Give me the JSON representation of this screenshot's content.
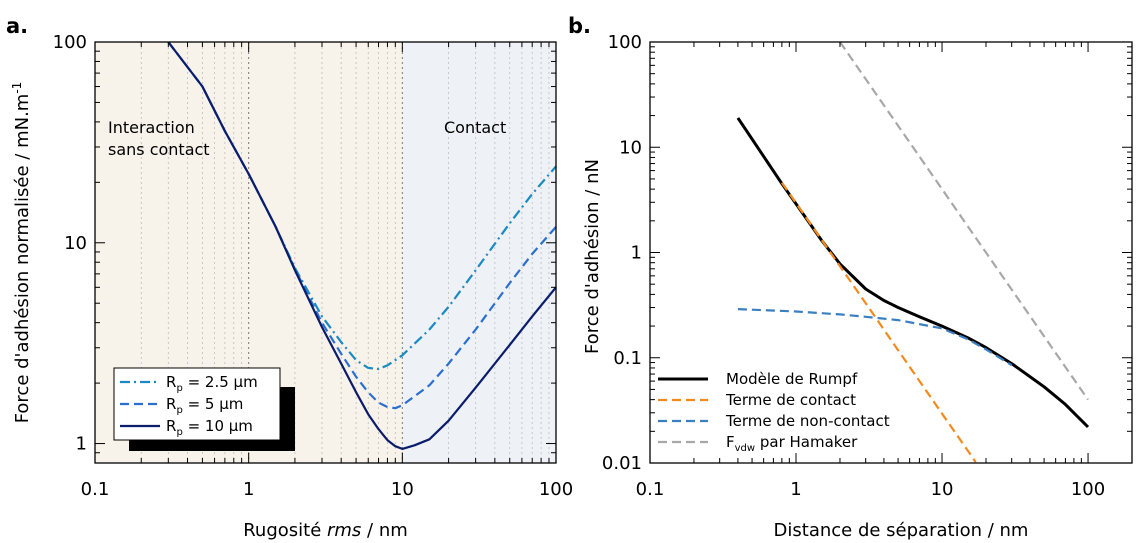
{
  "chart_data": [
    {
      "panel_label": "a.",
      "type": "line",
      "xlabel_main": "Rugosité ",
      "xlabel_italic": "rms",
      "xlabel_tail": " / nm",
      "ylabel": "Force d'adhésion normalisée / mN.m",
      "ylabel_sup": "-1",
      "xscale": "log",
      "yscale": "log",
      "xlim": [
        0.1,
        100
      ],
      "ylim": [
        0.8,
        100
      ],
      "xtick_labels": [
        {
          "value": 0.1,
          "label": "0.1"
        },
        {
          "value": 1,
          "label": "1"
        },
        {
          "value": 10,
          "label": "10"
        },
        {
          "value": 100,
          "label": "100"
        }
      ],
      "ytick_labels": [
        {
          "value": 1,
          "label": "1"
        },
        {
          "value": 10,
          "label": "10"
        },
        {
          "value": 100,
          "label": "100"
        }
      ],
      "grid": "vertical minor dotted",
      "regions": [
        {
          "label_lines": [
            "Interaction",
            "sans contact"
          ],
          "x_range": [
            0.1,
            10
          ],
          "color": "#f7f2ea"
        },
        {
          "label_lines": [
            "Contact"
          ],
          "x_range": [
            10,
            100
          ],
          "color": "#eef1f6"
        }
      ],
      "legend_position": "bottom-left",
      "series": [
        {
          "name": "R",
          "name_sub": "p",
          "name_tail": " = 2.5 µm",
          "color": "#1a8ac2",
          "dash": "dashdot",
          "x": [
            0.3,
            0.5,
            0.7,
            1.0,
            1.5,
            2.0,
            3.0,
            4.0,
            5.0,
            6.0,
            7.0,
            8.0,
            10.0,
            15.0,
            20.0,
            30.0,
            50.0,
            70.0,
            100.0
          ],
          "values": [
            100,
            60,
            36,
            22,
            12,
            7.5,
            4.3,
            3.2,
            2.6,
            2.38,
            2.35,
            2.45,
            2.75,
            3.7,
            4.8,
            7.3,
            12.5,
            17.5,
            24
          ]
        },
        {
          "name": "R",
          "name_sub": "p",
          "name_tail": " = 5 µm",
          "color": "#2a6fd0",
          "dash": "dashed",
          "x": [
            0.3,
            0.5,
            0.7,
            1.0,
            1.5,
            2.0,
            3.0,
            4.0,
            5.0,
            6.0,
            7.0,
            8.0,
            9.0,
            10.0,
            15.0,
            20.0,
            30.0,
            50.0,
            70.0,
            100.0
          ],
          "values": [
            100,
            60,
            36,
            22,
            12,
            7.4,
            4.0,
            2.8,
            2.15,
            1.8,
            1.6,
            1.52,
            1.5,
            1.55,
            1.95,
            2.5,
            3.7,
            6.3,
            8.8,
            12
          ]
        },
        {
          "name": "R",
          "name_sub": "p",
          "name_tail": " = 10 µm",
          "color": "#0b1c6b",
          "dash": "solid",
          "x": [
            0.3,
            0.5,
            0.7,
            1.0,
            1.5,
            2.0,
            3.0,
            4.0,
            5.0,
            6.0,
            7.0,
            8.0,
            9.0,
            10.0,
            12.0,
            15.0,
            20.0,
            30.0,
            50.0,
            70.0,
            100.0
          ],
          "values": [
            100,
            60,
            36,
            22,
            12,
            7.3,
            3.8,
            2.5,
            1.8,
            1.4,
            1.18,
            1.04,
            0.97,
            0.94,
            0.98,
            1.05,
            1.3,
            1.9,
            3.1,
            4.3,
            6
          ]
        }
      ]
    },
    {
      "panel_label": "b.",
      "type": "line",
      "xlabel": "Distance de séparation / nm",
      "ylabel": "Force d'adhésion / nN",
      "xscale": "log",
      "yscale": "log",
      "xlim": [
        0.1,
        200
      ],
      "ylim": [
        0.01,
        100
      ],
      "xtick_labels": [
        {
          "value": 0.1,
          "label": "0.1"
        },
        {
          "value": 1,
          "label": "1"
        },
        {
          "value": 10,
          "label": "10"
        },
        {
          "value": 100,
          "label": "100"
        }
      ],
      "ytick_labels": [
        {
          "value": 0.01,
          "label": "0.01"
        },
        {
          "value": 0.1,
          "label": "0.1"
        },
        {
          "value": 1,
          "label": "1"
        },
        {
          "value": 10,
          "label": "10"
        },
        {
          "value": 100,
          "label": "100"
        }
      ],
      "legend_position": "bottom-left",
      "series": [
        {
          "name": "Modèle de Rumpf",
          "color": "#000000",
          "dash": "solid",
          "width": 3,
          "x": [
            0.4,
            0.6,
            0.8,
            1.0,
            1.5,
            2.0,
            3.0,
            4.0,
            5.0,
            7.0,
            10.0,
            15.0,
            20.0,
            30.0,
            50.0,
            70.0,
            100.0
          ],
          "values": [
            19,
            8.2,
            4.5,
            2.9,
            1.3,
            0.78,
            0.45,
            0.35,
            0.3,
            0.245,
            0.2,
            0.155,
            0.125,
            0.088,
            0.053,
            0.036,
            0.022
          ]
        },
        {
          "name": "Terme de contact",
          "color": "#f28a1c",
          "dash": "dashed",
          "x": [
            0.8,
            1.0,
            2.0,
            3.0,
            5.0,
            10.0,
            17.0
          ],
          "values": [
            4.6,
            2.95,
            0.74,
            0.33,
            0.118,
            0.0295,
            0.0102
          ]
        },
        {
          "name": "Terme de non-contact",
          "color": "#3a7fc0",
          "dash": "dashed",
          "x": [
            0.4,
            1.0,
            2.0,
            3.0,
            5.0,
            10.0,
            15.0,
            20.0,
            30.0
          ],
          "values": [
            0.29,
            0.275,
            0.258,
            0.245,
            0.228,
            0.19,
            0.15,
            0.12,
            0.085
          ]
        },
        {
          "name": "F",
          "name_sub": "vdw",
          "name_tail": " par Hamaker",
          "color": "#a8a8a8",
          "dash": "dashed",
          "x": [
            2.0,
            100.0
          ],
          "values": [
            100,
            0.04
          ]
        }
      ]
    }
  ]
}
